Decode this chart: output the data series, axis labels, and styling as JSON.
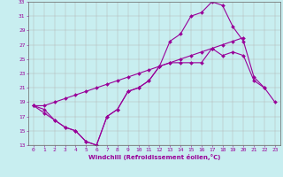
{
  "xlabel": "Windchill (Refroidissement éolien,°C)",
  "ylabel": "",
  "xlim": [
    -0.5,
    23.5
  ],
  "ylim": [
    13,
    33
  ],
  "yticks": [
    13,
    15,
    17,
    19,
    21,
    23,
    25,
    27,
    29,
    31,
    33
  ],
  "xticks": [
    0,
    1,
    2,
    3,
    4,
    5,
    6,
    7,
    8,
    9,
    10,
    11,
    12,
    13,
    14,
    15,
    16,
    17,
    18,
    19,
    20,
    21,
    22,
    23
  ],
  "background_color": "#c8eef0",
  "grid_color": "#b0b0b0",
  "line_color": "#990099",
  "series": [
    {
      "x": [
        0,
        1,
        2,
        3,
        4,
        5,
        6,
        7,
        8,
        9,
        10,
        11,
        12,
        13,
        14,
        15,
        16,
        17,
        18,
        19,
        20,
        21,
        22,
        23
      ],
      "y": [
        18.5,
        18.0,
        16.5,
        15.5,
        15.0,
        13.5,
        13.0,
        17.0,
        18.0,
        20.5,
        21.0,
        22.0,
        24.0,
        27.5,
        28.5,
        31.0,
        31.5,
        33.0,
        32.5,
        29.5,
        27.5,
        22.5,
        21.0,
        null
      ]
    },
    {
      "x": [
        0,
        1,
        2,
        3,
        4,
        5,
        6,
        7,
        8,
        9,
        10,
        11,
        12,
        13,
        14,
        15,
        16,
        17,
        18,
        19,
        20,
        21,
        22,
        23
      ],
      "y": [
        18.5,
        18.5,
        19.0,
        19.5,
        20.0,
        20.5,
        21.0,
        21.5,
        22.0,
        22.5,
        23.0,
        23.5,
        24.0,
        24.5,
        25.0,
        25.5,
        26.0,
        26.5,
        27.0,
        27.5,
        28.0,
        null,
        null,
        null
      ]
    },
    {
      "x": [
        0,
        1,
        2,
        3,
        4,
        5,
        6,
        7,
        8,
        9,
        10,
        11,
        12,
        13,
        14,
        15,
        16,
        17,
        18,
        19,
        20,
        21,
        22,
        23
      ],
      "y": [
        18.5,
        17.5,
        16.5,
        15.5,
        15.0,
        13.5,
        13.0,
        17.0,
        18.0,
        20.5,
        21.0,
        22.0,
        24.0,
        24.5,
        24.5,
        24.5,
        24.5,
        26.5,
        25.5,
        26.0,
        25.5,
        22.0,
        21.0,
        19.0
      ]
    }
  ]
}
